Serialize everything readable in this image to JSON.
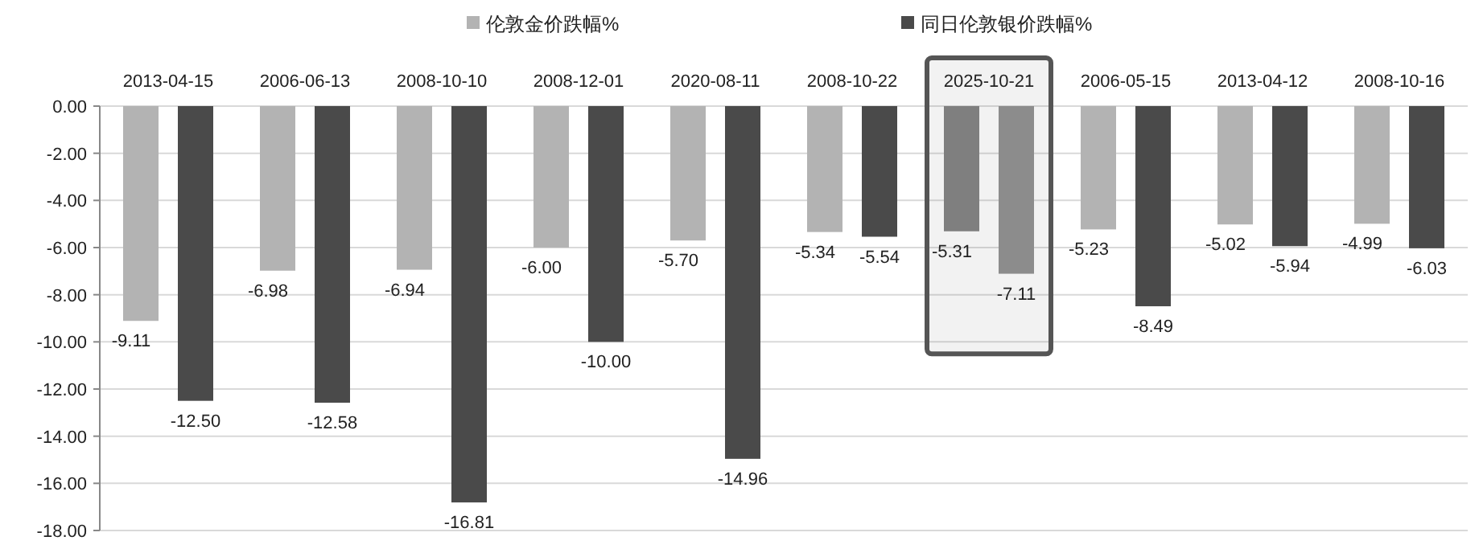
{
  "chart_data": {
    "type": "bar",
    "categories": [
      "2013-04-15",
      "2006-06-13",
      "2008-10-10",
      "2008-12-01",
      "2020-08-11",
      "2008-10-22",
      "2025-10-21",
      "2006-05-15",
      "2013-04-12",
      "2008-10-16"
    ],
    "series": [
      {
        "name": "伦敦金价跌幅%",
        "color": "#b3b3b3",
        "colors": [
          "#b3b3b3",
          "#b3b3b3",
          "#b3b3b3",
          "#b3b3b3",
          "#b3b3b3",
          "#b3b3b3",
          "#7f7f7f",
          "#b3b3b3",
          "#b3b3b3",
          "#b3b3b3"
        ],
        "values": [
          -9.11,
          -6.98,
          -6.94,
          -6.0,
          -5.7,
          -5.34,
          -5.31,
          -5.23,
          -5.02,
          -4.99
        ],
        "value_labels": [
          "-9.11",
          "-6.98",
          "-6.94",
          "-6.00",
          "-5.70",
          "-5.34",
          "-5.31",
          "-5.23",
          "-5.02",
          "-4.99"
        ]
      },
      {
        "name": "同日伦敦银价跌幅%",
        "color": "#4a4a4a",
        "colors": [
          "#4a4a4a",
          "#4a4a4a",
          "#4a4a4a",
          "#4a4a4a",
          "#4a4a4a",
          "#4a4a4a",
          "#8c8c8c",
          "#4a4a4a",
          "#4a4a4a",
          "#4a4a4a"
        ],
        "values": [
          -12.5,
          -12.58,
          -16.81,
          -10.0,
          -14.96,
          -5.54,
          -7.11,
          -8.49,
          -5.94,
          -6.03
        ],
        "value_labels": [
          "-12.50",
          "-12.58",
          "-16.81",
          "-10.00",
          "-14.96",
          "-5.54",
          "-7.11",
          "-8.49",
          "-5.94",
          "-6.03"
        ]
      }
    ],
    "ylim": [
      -18,
      0
    ],
    "yticks": [
      {
        "value": 0,
        "label": "0.00"
      },
      {
        "value": -2,
        "label": "-2.00"
      },
      {
        "value": -4,
        "label": "-4.00"
      },
      {
        "value": -6,
        "label": "-6.00"
      },
      {
        "value": -8,
        "label": "-8.00"
      },
      {
        "value": -10,
        "label": "-10.00"
      },
      {
        "value": -12,
        "label": "-12.00"
      },
      {
        "value": -14,
        "label": "-14.00"
      },
      {
        "value": -16,
        "label": "-16.00"
      },
      {
        "value": -18,
        "label": "-18.00"
      }
    ],
    "grid": "y",
    "legend": "top",
    "bands": [
      {
        "axis": "x",
        "from": "2025-10-21",
        "to": "2025-10-21",
        "color": "#555555"
      }
    ]
  }
}
